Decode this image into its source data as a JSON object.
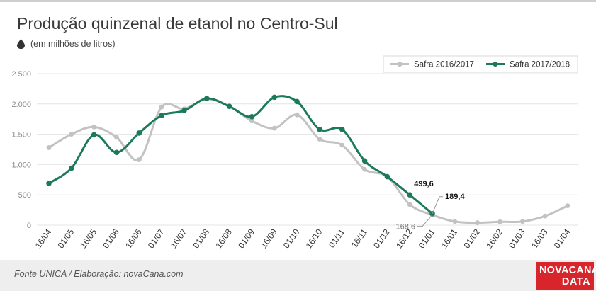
{
  "title": "Produção quinzenal de etanol no Centro-Sul",
  "subtitle": "(em milhões de litros)",
  "icons": {
    "subtitle_icon": "oil-drop-icon"
  },
  "footer": {
    "source": "Fonte UNICA / Elaboração: novaCana.com"
  },
  "logo": {
    "line1": "NOVACANA",
    "line2": "DATA"
  },
  "colors": {
    "series_2016": "#c2c2c2",
    "series_2017": "#1a7a5a",
    "grid": "#e4e4e4",
    "logo_bg": "#d7252b",
    "footer_bg": "#eeeeee"
  },
  "chart_data": {
    "type": "line",
    "title": "Produção quinzenal de etanol no Centro-Sul",
    "ylabel": "(em milhões de litros)",
    "ylim": [
      0,
      2500
    ],
    "yticks": [
      0,
      500,
      1000,
      1500,
      2000,
      2500
    ],
    "ytick_labels": [
      "0",
      "500",
      "1.000",
      "1.500",
      "2.000",
      "2.500"
    ],
    "grid": true,
    "legend_position": "top-right",
    "categories": [
      "16/04",
      "01/05",
      "16/05",
      "01/06",
      "16/06",
      "01/07",
      "16/07",
      "01/08",
      "16/08",
      "01/09",
      "16/09",
      "01/10",
      "16/10",
      "01/11",
      "16/11",
      "01/12",
      "16/12",
      "01/01",
      "16/01",
      "01/02",
      "16/02",
      "01/03",
      "16/03",
      "01/04"
    ],
    "series": [
      {
        "name": "Safra 2016/2017",
        "values": [
          1280,
          1500,
          1620,
          1450,
          1080,
          1950,
          1920,
          2080,
          1960,
          1720,
          1600,
          1820,
          1420,
          1320,
          920,
          800,
          340,
          168.6,
          60,
          40,
          55,
          60,
          150,
          320
        ]
      },
      {
        "name": "Safra 2017/2018",
        "values": [
          690,
          940,
          1490,
          1200,
          1520,
          1810,
          1890,
          2090,
          1960,
          1790,
          2110,
          2040,
          1580,
          1580,
          1060,
          800,
          499.6,
          189.4,
          null,
          null,
          null,
          null,
          null,
          null
        ]
      }
    ],
    "annotations": [
      {
        "text": "499,6",
        "series": "Safra 2017/2018",
        "category": "16/12"
      },
      {
        "text": "189,4",
        "series": "Safra 2017/2018",
        "category": "01/01"
      },
      {
        "text": "168,6",
        "series": "Safra 2016/2017",
        "category": "01/01"
      }
    ]
  }
}
